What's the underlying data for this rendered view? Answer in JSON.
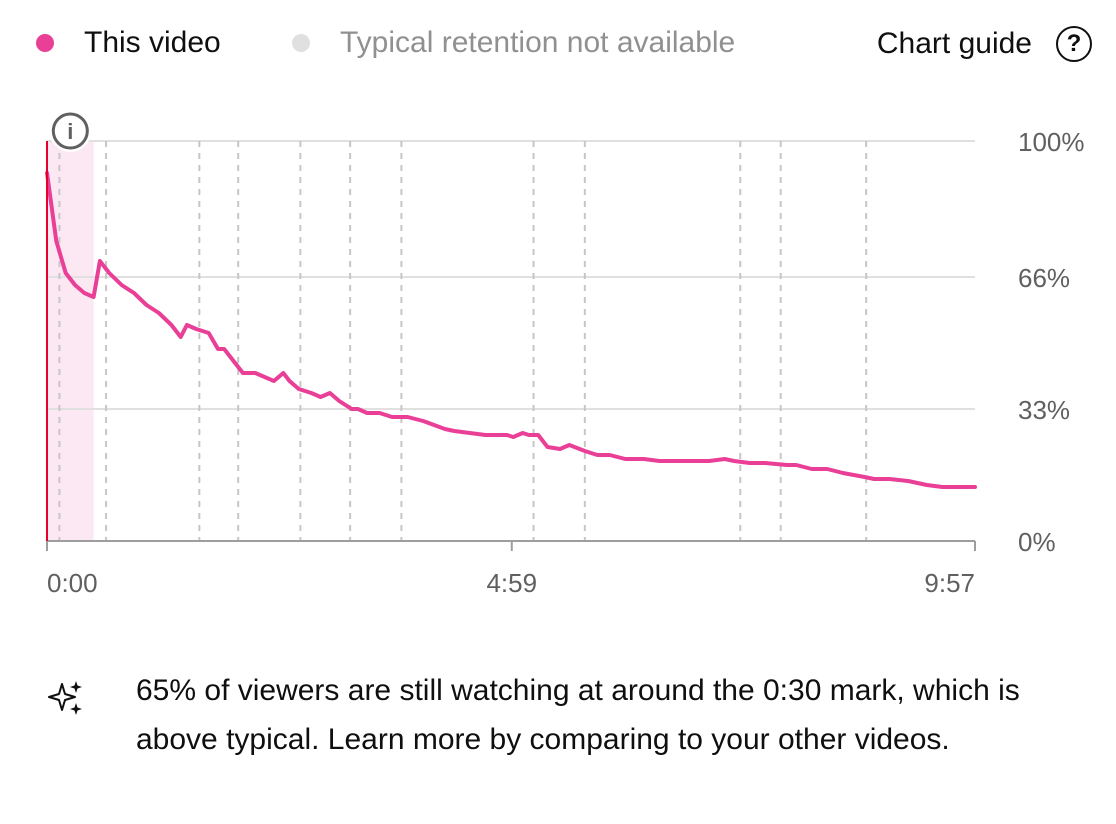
{
  "legend": {
    "this_video": {
      "label": "This video",
      "color": "#e93f97"
    },
    "typical": {
      "label": "Typical retention not available",
      "color": "#e0e0e0"
    }
  },
  "chart_guide": {
    "label": "Chart guide",
    "icon": "help-icon",
    "icon_glyph": "?"
  },
  "info_marker": {
    "icon": "info-icon",
    "glyph": "i"
  },
  "insight": {
    "icon": "sparkle-icon",
    "text": "65% of viewers are still watching at around the 0:30 mark, which is above typical. Learn more by comparing to your other videos."
  },
  "colors": {
    "line": "#e93f97",
    "playhead": "#e4002b",
    "intro_band": "#fce8f3",
    "gridline": "#e0e0e0",
    "marker": "#c6c6c6",
    "axis_text": "#606060"
  },
  "chart_data": {
    "type": "line",
    "title": "",
    "xlabel": "",
    "ylabel": "",
    "x_unit": "seconds",
    "xlim": [
      0,
      597
    ],
    "ylim": [
      0,
      100
    ],
    "x_ticks": [
      {
        "value": 0,
        "label": "0:00"
      },
      {
        "value": 299,
        "label": "4:59"
      },
      {
        "value": 597,
        "label": "9:57"
      }
    ],
    "y_ticks": [
      {
        "value": 0,
        "label": "0%"
      },
      {
        "value": 33,
        "label": "33%"
      },
      {
        "value": 66,
        "label": "66%"
      },
      {
        "value": 100,
        "label": "100%"
      }
    ],
    "grid": true,
    "legend": "top-left",
    "highlight_range": [
      0,
      30
    ],
    "key_moment_markers": [
      8,
      38,
      98,
      123,
      163,
      195,
      228,
      313,
      346,
      446,
      472,
      527
    ],
    "series": [
      {
        "name": "This video",
        "x": [
          0,
          6,
          12,
          18,
          24,
          30,
          34,
          40,
          48,
          56,
          64,
          72,
          80,
          86,
          90,
          96,
          104,
          110,
          114,
          120,
          126,
          134,
          140,
          146,
          152,
          156,
          162,
          170,
          176,
          182,
          188,
          196,
          200,
          206,
          214,
          222,
          232,
          242,
          256,
          262,
          272,
          282,
          296,
          300,
          306,
          310,
          316,
          322,
          330,
          336,
          346,
          354,
          362,
          372,
          384,
          394,
          406,
          416,
          426,
          436,
          442,
          452,
          462,
          476,
          482,
          492,
          502,
          512,
          526,
          532,
          542,
          554,
          566,
          576,
          588,
          597
        ],
        "y": [
          92,
          75,
          67,
          64,
          62,
          61,
          70,
          67,
          64,
          62,
          59,
          57,
          54,
          51,
          54,
          53,
          52,
          48,
          48,
          45,
          42,
          42,
          41,
          40,
          42,
          40,
          38,
          37,
          36,
          37,
          35,
          33,
          33,
          32,
          32,
          31,
          31,
          30,
          28,
          27.5,
          27,
          26.5,
          26.5,
          26,
          27,
          26.5,
          26.5,
          23.5,
          23,
          24,
          22.5,
          21.5,
          21.5,
          20.5,
          20.5,
          20,
          20,
          20,
          20,
          20.5,
          20,
          19.5,
          19.5,
          19,
          19,
          18,
          18,
          17,
          16,
          15.5,
          15.5,
          15,
          14,
          13.5,
          13.5,
          13.5
        ]
      }
    ]
  }
}
